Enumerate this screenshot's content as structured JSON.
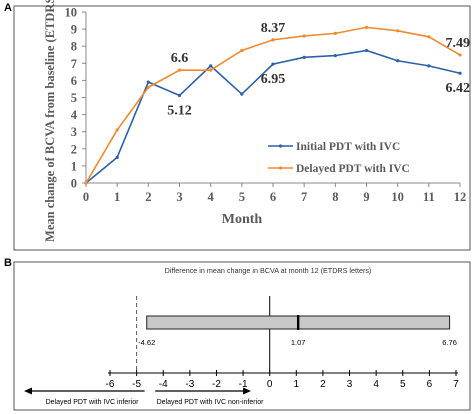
{
  "panels": {
    "a_label": "A",
    "b_label": "B"
  },
  "chart_data": [
    {
      "type": "line",
      "xlabel": "Month",
      "ylabel": "Mean change of BCVA from baseline (ETDRS letters)",
      "x": [
        0,
        1,
        2,
        3,
        4,
        5,
        6,
        7,
        8,
        9,
        10,
        11,
        12
      ],
      "xlim": [
        0,
        12
      ],
      "ylim": [
        0,
        10
      ],
      "xticks": [
        "0",
        "1",
        "2",
        "3",
        "4",
        "5",
        "6",
        "7",
        "8",
        "9",
        "10",
        "11",
        "12"
      ],
      "yticks": [
        "0",
        "1",
        "2",
        "3",
        "4",
        "5",
        "6",
        "7",
        "8",
        "9",
        "10"
      ],
      "grid": false,
      "legend_position": "right",
      "series": [
        {
          "name": "Initial PDT with IVC",
          "color": "#2e5fa8",
          "values": [
            0,
            1.5,
            5.9,
            5.12,
            6.85,
            5.2,
            6.95,
            7.35,
            7.45,
            7.75,
            7.15,
            6.85,
            6.42
          ]
        },
        {
          "name": "Delayed PDT with IVC",
          "color": "#f08a2c",
          "values": [
            0,
            3.1,
            5.6,
            6.6,
            6.6,
            7.75,
            8.37,
            8.6,
            8.75,
            9.1,
            8.9,
            8.55,
            7.49
          ]
        }
      ],
      "annotations": [
        {
          "x": 3,
          "y": 6.6,
          "text": "6.6",
          "pos": "above"
        },
        {
          "x": 3,
          "y": 5.12,
          "text": "5.12",
          "pos": "below"
        },
        {
          "x": 6,
          "y": 8.37,
          "text": "8.37",
          "pos": "above"
        },
        {
          "x": 6,
          "y": 6.95,
          "text": "6.95",
          "pos": "below"
        },
        {
          "x": 12,
          "y": 7.49,
          "text": "7.49",
          "pos": "above"
        },
        {
          "x": 12,
          "y": 6.42,
          "text": "6.42",
          "pos": "below"
        }
      ]
    },
    {
      "type": "interval",
      "title": "Difference in mean change in BCVA at month 12 (ETDRS letters)",
      "estimate": 1.07,
      "ci": [
        -4.62,
        6.76
      ],
      "labels": {
        "lower": "-4.62",
        "estimate": "1.07",
        "upper": "6.76"
      },
      "margin": -5,
      "xlim": [
        -6,
        7
      ],
      "xticks": [
        "-6",
        "-5",
        "-4",
        "-3",
        "-2",
        "-1",
        "0",
        "1",
        "2",
        "3",
        "4",
        "5",
        "6",
        "7"
      ],
      "left_arrow_label": "Delayed PDT with IVC inferior",
      "right_arrow_label": "Delayed PDT with IVC non-inferior"
    }
  ]
}
